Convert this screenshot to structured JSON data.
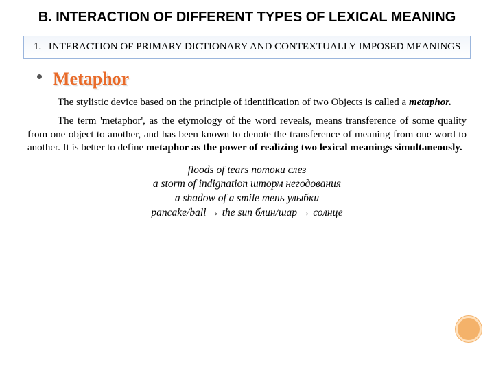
{
  "title": "B. INTERACTION OF DIFFERENT TYPES OF LEXICAL MEANING",
  "subheading": {
    "num": "1.",
    "text": "INTERACTION OF PRIMARY DICTIONARY AND CONTEXTUALLY IMPOSED MEANINGS"
  },
  "term_heading": "Metaphor",
  "para1_a": "The stylistic device based on the principle of identification of two Objects is called a ",
  "para1_term": "metaphor.",
  "para2": "The term 'metaphor', as the etymology of the word reveals, means transference of some quality from one object to another, and has been known to denote the transference of meaning from one word to another. It is better to define ",
  "para2_bold": "metaphor as the power of realizing two lexical meanings simultaneously.",
  "examples": {
    "line1": "floods of tears потоки слез",
    "line2": "a storm of indignation шторм негодования",
    "line3": "a shadow of a smile тень улыбки",
    "line4": "pancake/ball → the sun блин/шар → солнце"
  },
  "colors": {
    "heading_orange": "#e86b2a",
    "box_border": "#9bb6dd",
    "circle_fill": "#f4b26a",
    "circle_ring": "#ffe1bd"
  }
}
